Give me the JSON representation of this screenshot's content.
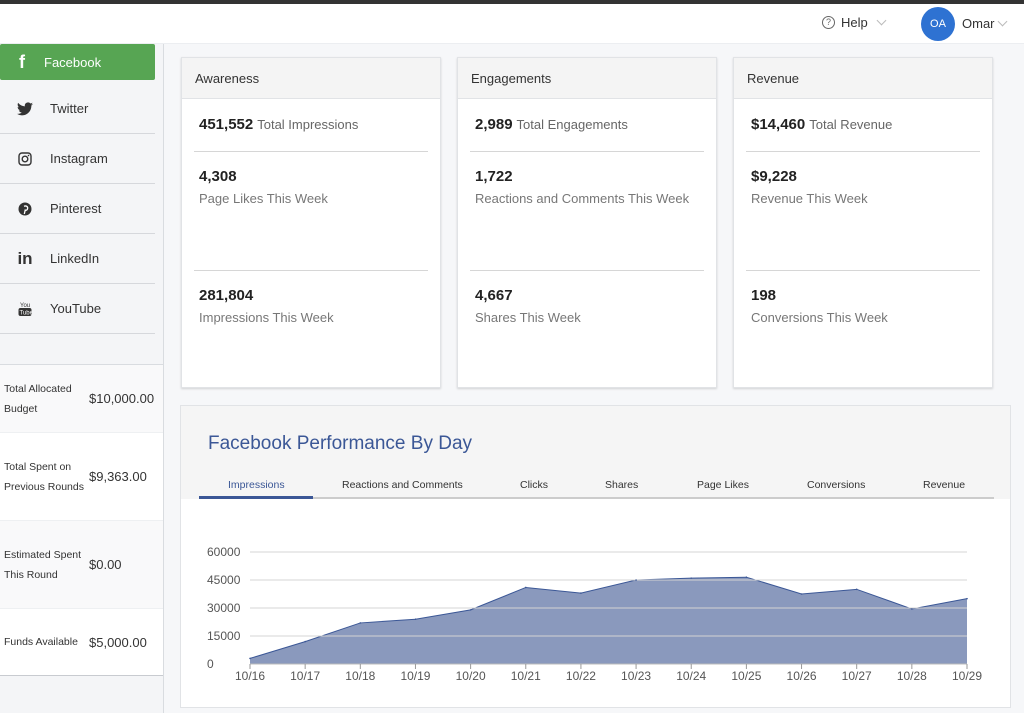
{
  "header": {
    "help_label": "Help",
    "help_icon": "question-circle-icon",
    "avatar_initials": "OA",
    "user_name": "Omar"
  },
  "sidebar": {
    "items": [
      {
        "label": "Facebook",
        "icon": "facebook-icon",
        "glyph": "f",
        "active": true
      },
      {
        "label": "Twitter",
        "icon": "twitter-icon",
        "glyph": "🐦"
      },
      {
        "label": "Instagram",
        "icon": "instagram-icon",
        "glyph": "◎"
      },
      {
        "label": "Pinterest",
        "icon": "pinterest-icon",
        "glyph": "℗"
      },
      {
        "label": "LinkedIn",
        "icon": "linkedin-icon",
        "glyph": "in"
      },
      {
        "label": "YouTube",
        "icon": "youtube-icon",
        "glyph": "▣"
      }
    ],
    "budget": [
      {
        "label": "Total Allocated Budget",
        "value": "$10,000.00"
      },
      {
        "label": "Total Spent on Previous Rounds",
        "value": "$9,363.00"
      },
      {
        "label": "Estimated Spent This Round",
        "value": "$0.00"
      },
      {
        "label": "Funds Available",
        "value": "$5,000.00"
      }
    ]
  },
  "cards": [
    {
      "title": "Awareness",
      "total_value": "451,552",
      "total_label": "Total Impressions",
      "stats": [
        {
          "value": "4,308",
          "label": "Page Likes This Week"
        },
        {
          "value": "281,804",
          "label": "Impressions This Week"
        }
      ]
    },
    {
      "title": "Engagements",
      "total_value": "2,989",
      "total_label": "Total Engagements",
      "stats": [
        {
          "value": "1,722",
          "label": "Reactions and Comments This Week"
        },
        {
          "value": "4,667",
          "label": "Shares This Week"
        }
      ]
    },
    {
      "title": "Revenue",
      "total_value": "$14,460",
      "total_label": "Total Revenue",
      "stats": [
        {
          "value": "$9,228",
          "label": "Revenue This Week"
        },
        {
          "value": "198",
          "label": "Conversions This Week"
        }
      ]
    }
  ],
  "performance": {
    "title": "Facebook Performance By Day",
    "tabs": [
      "Impressions",
      "Reactions and Comments",
      "Clicks",
      "Shares",
      "Page Likes",
      "Conversions",
      "Revenue"
    ],
    "active_tab": "Impressions"
  },
  "colors": {
    "facebook_green": "#57a553",
    "accent_blue": "#3b5796",
    "area_fill": "#8a99bd",
    "avatar_blue": "#2e72d2"
  },
  "chart_data": {
    "type": "area",
    "title": "",
    "xlabel": "",
    "ylabel": "",
    "categories": [
      "10/16",
      "10/17",
      "10/18",
      "10/19",
      "10/20",
      "10/21",
      "10/22",
      "10/23",
      "10/24",
      "10/25",
      "10/26",
      "10/27",
      "10/28",
      "10/29"
    ],
    "series": [
      {
        "name": "Impressions",
        "values": [
          3000,
          12000,
          22000,
          24000,
          29000,
          41000,
          38000,
          45000,
          46000,
          46500,
          37500,
          40000,
          29500,
          35000
        ]
      }
    ],
    "yticks": [
      0,
      15000,
      30000,
      45000,
      60000
    ],
    "ylim": [
      0,
      60000
    ],
    "grid": true,
    "legend": "none"
  }
}
